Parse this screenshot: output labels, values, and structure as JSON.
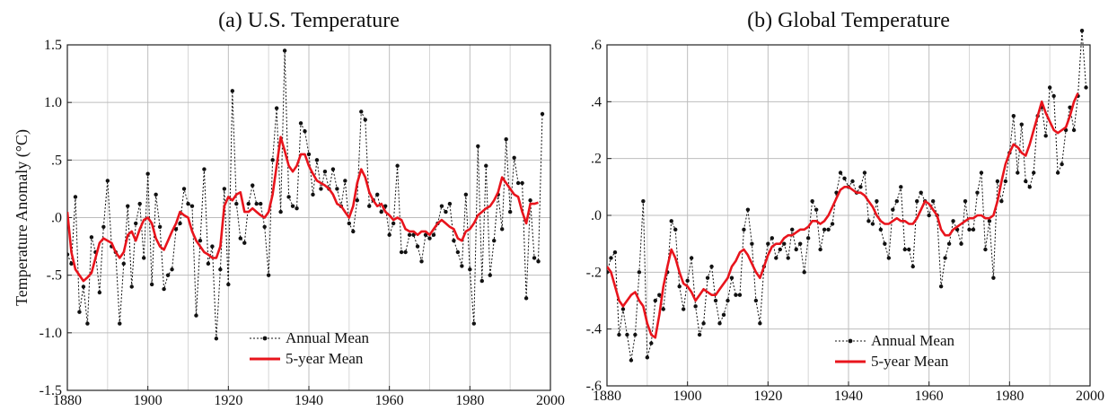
{
  "chart_data": [
    {
      "type": "line",
      "title": "(a)  U.S. Temperature",
      "ylabel": "Temperature Anomaly (°C)",
      "xlabel": "",
      "xlim": [
        1880,
        2000
      ],
      "ylim": [
        -1.5,
        1.5
      ],
      "x_ticks": [
        1880,
        1900,
        1920,
        1940,
        1960,
        1980,
        2000
      ],
      "x_tick_labels": [
        "1880",
        "1900",
        "1920",
        "1940",
        "1960",
        "1980",
        "2000"
      ],
      "y_ticks": [
        1.5,
        1.0,
        0.5,
        0.0,
        -0.5,
        -1.0,
        -1.5
      ],
      "y_tick_labels": [
        "1.5",
        "1.0",
        ".5",
        ".0",
        "-.5",
        "-1.0",
        "-1.5"
      ],
      "grid": true,
      "legend": {
        "placement": "bottom-center",
        "entries": [
          "Annual Mean",
          "5-year Mean"
        ]
      },
      "series": [
        {
          "name": "Annual Mean",
          "color": "#111111",
          "style": "dotted-with-markers",
          "x": [
            1880,
            1881,
            1882,
            1883,
            1884,
            1885,
            1886,
            1887,
            1888,
            1889,
            1890,
            1891,
            1892,
            1893,
            1894,
            1895,
            1896,
            1897,
            1898,
            1899,
            1900,
            1901,
            1902,
            1903,
            1904,
            1905,
            1906,
            1907,
            1908,
            1909,
            1910,
            1911,
            1912,
            1913,
            1914,
            1915,
            1916,
            1917,
            1918,
            1919,
            1920,
            1921,
            1922,
            1923,
            1924,
            1925,
            1926,
            1927,
            1928,
            1929,
            1930,
            1931,
            1932,
            1933,
            1934,
            1935,
            1936,
            1937,
            1938,
            1939,
            1940,
            1941,
            1942,
            1943,
            1944,
            1945,
            1946,
            1947,
            1948,
            1949,
            1950,
            1951,
            1952,
            1953,
            1954,
            1955,
            1956,
            1957,
            1958,
            1959,
            1960,
            1961,
            1962,
            1963,
            1964,
            1965,
            1966,
            1967,
            1968,
            1969,
            1970,
            1971,
            1972,
            1973,
            1974,
            1975,
            1976,
            1977,
            1978,
            1979,
            1980,
            1981,
            1982,
            1983,
            1984,
            1985,
            1986,
            1987,
            1988,
            1989,
            1990,
            1991,
            1992,
            1993,
            1994,
            1995,
            1996,
            1997,
            1998
          ],
          "y": [
            -0.32,
            -0.4,
            0.18,
            -0.82,
            -0.6,
            -0.92,
            -0.17,
            -0.3,
            -0.65,
            -0.08,
            0.32,
            -0.25,
            -0.3,
            -0.92,
            -0.4,
            0.1,
            -0.6,
            -0.05,
            0.12,
            -0.35,
            0.38,
            -0.58,
            0.2,
            -0.08,
            -0.62,
            -0.5,
            -0.45,
            -0.1,
            -0.05,
            0.25,
            0.12,
            0.1,
            -0.85,
            -0.2,
            0.42,
            -0.4,
            -0.25,
            -1.05,
            -0.45,
            0.25,
            -0.58,
            1.1,
            0.12,
            -0.18,
            -0.22,
            0.12,
            0.28,
            0.12,
            0.12,
            -0.08,
            -0.5,
            0.5,
            0.95,
            0.05,
            1.45,
            0.18,
            0.1,
            0.08,
            0.82,
            0.75,
            0.55,
            0.2,
            0.5,
            0.25,
            0.4,
            0.25,
            0.42,
            0.25,
            0.1,
            0.32,
            -0.05,
            -0.12,
            0.15,
            0.92,
            0.85,
            0.1,
            0.15,
            0.2,
            0.05,
            0.1,
            -0.15,
            -0.05,
            0.45,
            -0.3,
            -0.3,
            -0.15,
            -0.15,
            -0.25,
            -0.38,
            -0.15,
            -0.18,
            -0.15,
            -0.05,
            0.1,
            0.05,
            0.12,
            -0.2,
            -0.3,
            -0.42,
            0.2,
            -0.45,
            -0.92,
            0.62,
            -0.55,
            0.45,
            -0.5,
            -0.2,
            0.2,
            -0.1,
            0.68,
            0.05,
            0.52,
            0.3,
            0.3,
            -0.7,
            0.15,
            -0.35,
            -0.38,
            0.9
          ]
        },
        {
          "name": "5-year Mean",
          "color": "#e8141c",
          "style": "solid",
          "x": [
            1880,
            1881,
            1882,
            1883,
            1884,
            1885,
            1886,
            1887,
            1888,
            1889,
            1890,
            1891,
            1892,
            1893,
            1894,
            1895,
            1896,
            1897,
            1898,
            1899,
            1900,
            1901,
            1902,
            1903,
            1904,
            1905,
            1906,
            1907,
            1908,
            1909,
            1910,
            1911,
            1912,
            1913,
            1914,
            1915,
            1916,
            1917,
            1918,
            1919,
            1920,
            1921,
            1922,
            1923,
            1924,
            1925,
            1926,
            1927,
            1928,
            1929,
            1930,
            1931,
            1932,
            1933,
            1934,
            1935,
            1936,
            1937,
            1938,
            1939,
            1940,
            1941,
            1942,
            1943,
            1944,
            1945,
            1946,
            1947,
            1948,
            1949,
            1950,
            1951,
            1952,
            1953,
            1954,
            1955,
            1956,
            1957,
            1958,
            1959,
            1960,
            1961,
            1962,
            1963,
            1964,
            1965,
            1966,
            1967,
            1968,
            1969,
            1970,
            1971,
            1972,
            1973,
            1974,
            1975,
            1976,
            1977,
            1978,
            1979,
            1980,
            1981,
            1982,
            1983,
            1984,
            1985,
            1986,
            1987,
            1988,
            1989,
            1990,
            1991,
            1992,
            1993,
            1994,
            1995,
            1996,
            1997
          ],
          "y": [
            0.05,
            -0.3,
            -0.45,
            -0.5,
            -0.55,
            -0.52,
            -0.48,
            -0.35,
            -0.22,
            -0.18,
            -0.2,
            -0.22,
            -0.3,
            -0.35,
            -0.3,
            -0.15,
            -0.12,
            -0.2,
            -0.1,
            -0.02,
            0.0,
            -0.05,
            -0.18,
            -0.25,
            -0.28,
            -0.2,
            -0.12,
            -0.05,
            0.05,
            0.02,
            0.0,
            -0.12,
            -0.2,
            -0.25,
            -0.3,
            -0.32,
            -0.35,
            -0.35,
            -0.25,
            0.1,
            0.18,
            0.15,
            0.2,
            0.22,
            0.05,
            0.05,
            0.08,
            0.05,
            0.02,
            0.0,
            0.05,
            0.2,
            0.45,
            0.7,
            0.58,
            0.45,
            0.4,
            0.45,
            0.55,
            0.55,
            0.45,
            0.38,
            0.32,
            0.3,
            0.28,
            0.25,
            0.2,
            0.12,
            0.1,
            0.05,
            0.0,
            0.1,
            0.3,
            0.42,
            0.35,
            0.22,
            0.15,
            0.1,
            0.12,
            0.05,
            0.02,
            -0.02,
            0.0,
            -0.02,
            -0.1,
            -0.12,
            -0.12,
            -0.15,
            -0.12,
            -0.12,
            -0.15,
            -0.1,
            -0.05,
            -0.02,
            -0.05,
            -0.08,
            -0.1,
            -0.18,
            -0.2,
            -0.12,
            -0.1,
            -0.05,
            0.02,
            0.05,
            0.08,
            0.1,
            0.15,
            0.22,
            0.35,
            0.3,
            0.25,
            0.2,
            0.18,
            0.05,
            -0.05,
            0.12,
            0.12,
            0.13
          ]
        }
      ]
    },
    {
      "type": "line",
      "title": "(b)  Global Temperature",
      "ylabel": "",
      "xlabel": "",
      "xlim": [
        1880,
        2000
      ],
      "ylim": [
        -0.6,
        0.6
      ],
      "x_ticks": [
        1880,
        1900,
        1920,
        1940,
        1960,
        1980,
        2000
      ],
      "x_tick_labels": [
        "1880",
        "1900",
        "1920",
        "1940",
        "1960",
        "1980",
        "2000"
      ],
      "y_ticks": [
        0.6,
        0.4,
        0.2,
        0.0,
        -0.2,
        -0.4,
        -0.6
      ],
      "y_tick_labels": [
        ".6",
        ".4",
        ".2",
        ".0",
        "-.2",
        "-.4",
        "-.6"
      ],
      "grid": true,
      "legend": {
        "placement": "bottom-right",
        "entries": [
          "Annual Mean",
          "5-year Mean"
        ]
      },
      "series": [
        {
          "name": "Annual Mean",
          "color": "#111111",
          "style": "dotted-with-markers-errorbars",
          "x": [
            1880,
            1881,
            1882,
            1883,
            1884,
            1885,
            1886,
            1887,
            1888,
            1889,
            1890,
            1891,
            1892,
            1893,
            1894,
            1895,
            1896,
            1897,
            1898,
            1899,
            1900,
            1901,
            1902,
            1903,
            1904,
            1905,
            1906,
            1907,
            1908,
            1909,
            1910,
            1911,
            1912,
            1913,
            1914,
            1915,
            1916,
            1917,
            1918,
            1919,
            1920,
            1921,
            1922,
            1923,
            1924,
            1925,
            1926,
            1927,
            1928,
            1929,
            1930,
            1931,
            1932,
            1933,
            1934,
            1935,
            1936,
            1937,
            1938,
            1939,
            1940,
            1941,
            1942,
            1943,
            1944,
            1945,
            1946,
            1947,
            1948,
            1949,
            1950,
            1951,
            1952,
            1953,
            1954,
            1955,
            1956,
            1957,
            1958,
            1959,
            1960,
            1961,
            1962,
            1963,
            1964,
            1965,
            1966,
            1967,
            1968,
            1969,
            1970,
            1971,
            1972,
            1973,
            1974,
            1975,
            1976,
            1977,
            1978,
            1979,
            1980,
            1981,
            1982,
            1983,
            1984,
            1985,
            1986,
            1987,
            1988,
            1989,
            1990,
            1991,
            1992,
            1993,
            1994,
            1995,
            1996,
            1997,
            1998,
            1999
          ],
          "y": [
            -0.2,
            -0.15,
            -0.13,
            -0.42,
            -0.33,
            -0.42,
            -0.51,
            -0.42,
            -0.2,
            0.05,
            -0.5,
            -0.45,
            -0.3,
            -0.28,
            -0.33,
            -0.2,
            -0.02,
            -0.05,
            -0.25,
            -0.33,
            -0.23,
            -0.15,
            -0.32,
            -0.42,
            -0.38,
            -0.22,
            -0.18,
            -0.3,
            -0.38,
            -0.35,
            -0.3,
            -0.22,
            -0.28,
            -0.28,
            -0.05,
            0.02,
            -0.1,
            -0.3,
            -0.38,
            -0.18,
            -0.1,
            -0.08,
            -0.15,
            -0.12,
            -0.1,
            -0.15,
            -0.05,
            -0.12,
            -0.1,
            -0.2,
            -0.08,
            0.05,
            0.02,
            -0.12,
            -0.05,
            -0.05,
            -0.03,
            0.08,
            0.15,
            0.13,
            0.1,
            0.12,
            0.08,
            0.1,
            0.15,
            -0.02,
            -0.03,
            0.05,
            -0.05,
            -0.1,
            -0.15,
            0.02,
            0.05,
            0.1,
            -0.12,
            -0.12,
            -0.18,
            0.05,
            0.08,
            0.05,
            0.0,
            0.05,
            0.0,
            -0.25,
            -0.15,
            -0.1,
            -0.02,
            -0.05,
            -0.1,
            0.05,
            -0.05,
            -0.05,
            0.08,
            0.15,
            -0.12,
            -0.02,
            -0.22,
            0.12,
            0.05,
            0.12,
            0.22,
            0.35,
            0.15,
            0.32,
            0.12,
            0.1,
            0.15,
            0.35,
            0.38,
            0.28,
            0.45,
            0.42,
            0.15,
            0.18,
            0.3,
            0.38,
            0.3,
            0.42,
            0.65,
            0.45
          ]
        },
        {
          "name": "5-year Mean",
          "color": "#e8141c",
          "style": "solid",
          "x": [
            1880,
            1881,
            1882,
            1883,
            1884,
            1885,
            1886,
            1887,
            1888,
            1889,
            1890,
            1891,
            1892,
            1893,
            1894,
            1895,
            1896,
            1897,
            1898,
            1899,
            1900,
            1901,
            1902,
            1903,
            1904,
            1905,
            1906,
            1907,
            1908,
            1909,
            1910,
            1911,
            1912,
            1913,
            1914,
            1915,
            1916,
            1917,
            1918,
            1919,
            1920,
            1921,
            1922,
            1923,
            1924,
            1925,
            1926,
            1927,
            1928,
            1929,
            1930,
            1931,
            1932,
            1933,
            1934,
            1935,
            1936,
            1937,
            1938,
            1939,
            1940,
            1941,
            1942,
            1943,
            1944,
            1945,
            1946,
            1947,
            1948,
            1949,
            1950,
            1951,
            1952,
            1953,
            1954,
            1955,
            1956,
            1957,
            1958,
            1959,
            1960,
            1961,
            1962,
            1963,
            1964,
            1965,
            1966,
            1967,
            1968,
            1969,
            1970,
            1971,
            1972,
            1973,
            1974,
            1975,
            1976,
            1977,
            1978,
            1979,
            1980,
            1981,
            1982,
            1983,
            1984,
            1985,
            1986,
            1987,
            1988,
            1989,
            1990,
            1991,
            1992,
            1993,
            1994,
            1995,
            1996,
            1997
          ],
          "y": [
            -0.18,
            -0.2,
            -0.25,
            -0.3,
            -0.32,
            -0.3,
            -0.28,
            -0.27,
            -0.3,
            -0.32,
            -0.38,
            -0.42,
            -0.43,
            -0.35,
            -0.25,
            -0.18,
            -0.12,
            -0.15,
            -0.2,
            -0.24,
            -0.25,
            -0.27,
            -0.3,
            -0.28,
            -0.26,
            -0.27,
            -0.28,
            -0.28,
            -0.26,
            -0.24,
            -0.22,
            -0.18,
            -0.16,
            -0.13,
            -0.12,
            -0.14,
            -0.17,
            -0.2,
            -0.22,
            -0.18,
            -0.14,
            -0.11,
            -0.1,
            -0.1,
            -0.08,
            -0.07,
            -0.07,
            -0.06,
            -0.05,
            -0.05,
            -0.04,
            -0.02,
            -0.02,
            -0.03,
            -0.02,
            0.0,
            0.03,
            0.06,
            0.09,
            0.1,
            0.1,
            0.09,
            0.08,
            0.08,
            0.07,
            0.05,
            0.03,
            0.0,
            -0.02,
            -0.03,
            -0.03,
            -0.02,
            -0.01,
            -0.02,
            -0.02,
            -0.03,
            -0.03,
            -0.01,
            0.02,
            0.05,
            0.04,
            0.02,
            0.0,
            -0.05,
            -0.07,
            -0.07,
            -0.05,
            -0.04,
            -0.03,
            -0.02,
            -0.01,
            -0.01,
            0.0,
            0.0,
            -0.01,
            -0.01,
            0.0,
            0.05,
            0.12,
            0.18,
            0.22,
            0.25,
            0.24,
            0.22,
            0.21,
            0.25,
            0.3,
            0.35,
            0.4,
            0.36,
            0.33,
            0.3,
            0.29,
            0.3,
            0.31,
            0.35,
            0.4,
            0.43
          ]
        }
      ]
    }
  ]
}
